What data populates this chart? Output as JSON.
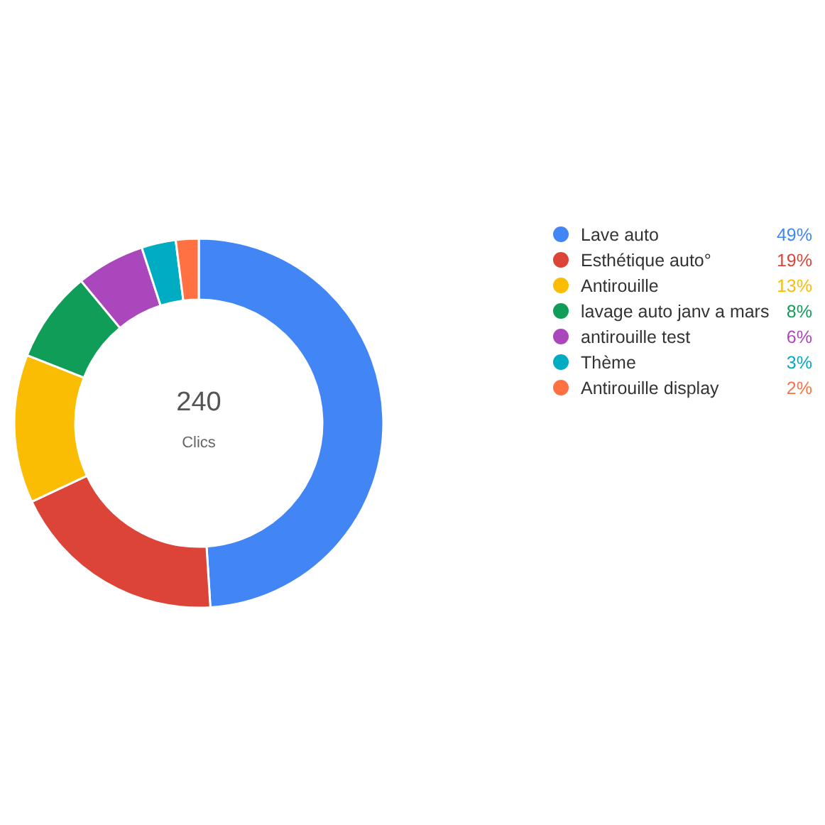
{
  "chart_data": {
    "type": "donut",
    "categories": [
      "Lave auto",
      "Esthétique auto°",
      "Antirouille",
      "lavage auto janv a mars",
      "antirouille test",
      "Thème",
      "Antirouille display"
    ],
    "values": [
      49,
      19,
      13,
      8,
      6,
      3,
      2
    ],
    "colors": [
      "#4285f4",
      "#db4437",
      "#fbbc04",
      "#0f9d58",
      "#ab47bc",
      "#00acc1",
      "#ff7043"
    ],
    "value_labels": [
      "49%",
      "19%",
      "13%",
      "8%",
      "6%",
      "3%",
      "2%"
    ],
    "legend": "right",
    "annotations": [
      "240",
      "Clics"
    ]
  }
}
